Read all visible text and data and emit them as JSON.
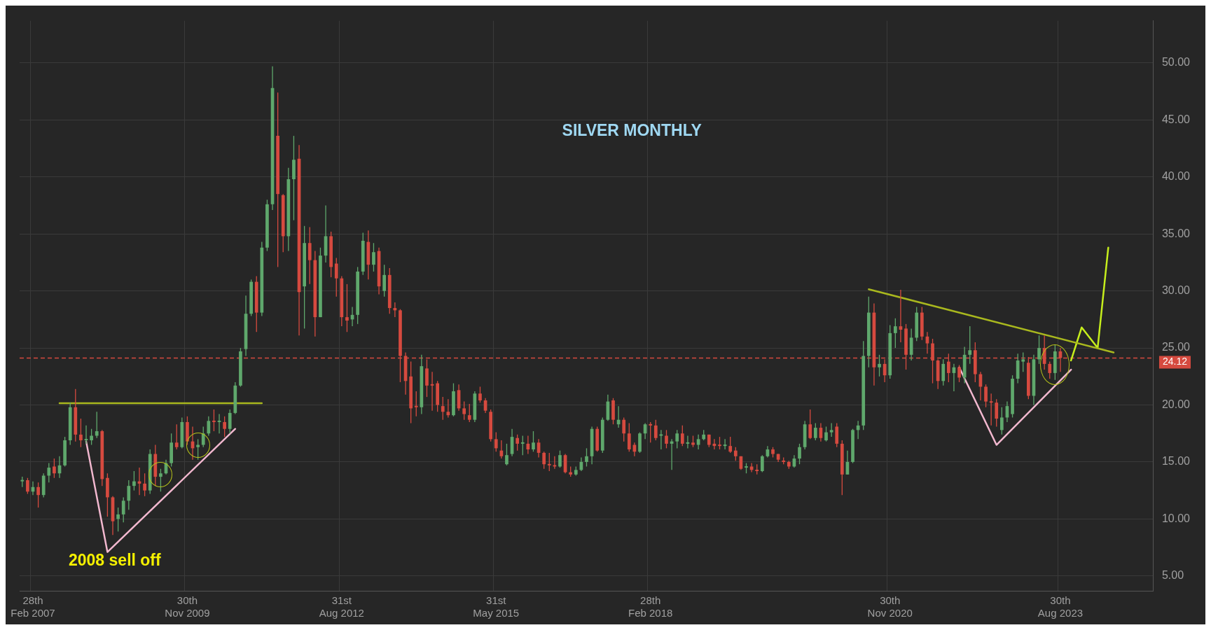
{
  "chart_data": {
    "type": "candlestick",
    "title": "SILVER MONTHLY",
    "annotations": [
      "2008 sell off"
    ],
    "categories": [
      null,
      null,
      "28th Feb 2007",
      null,
      null,
      null,
      null,
      null,
      null,
      null,
      null,
      null,
      null,
      null,
      null,
      null,
      null,
      null,
      null,
      null,
      null,
      null,
      null,
      null,
      null,
      null,
      null,
      null,
      null,
      null,
      null,
      "30th Nov 2009",
      null,
      null,
      null,
      null,
      null,
      null,
      null,
      null,
      null,
      null,
      null,
      null,
      null,
      null,
      null,
      null,
      null,
      null,
      null,
      null,
      null,
      null,
      null,
      null,
      null,
      null,
      null,
      null,
      "31st Aug 2012",
      null,
      null,
      null,
      null,
      null,
      null,
      null,
      null,
      null,
      null,
      null,
      null,
      null,
      null,
      null,
      null,
      null,
      null,
      null,
      null,
      null,
      null,
      null,
      null,
      null,
      null,
      null,
      null,
      "31st May 2015",
      null,
      null,
      null,
      null,
      null,
      null,
      null,
      null,
      null,
      null,
      null,
      null,
      null,
      null,
      null,
      null,
      null,
      null,
      null,
      null,
      null,
      null,
      null,
      null,
      null,
      null,
      null,
      null,
      "28th Feb 2018",
      null,
      null,
      null,
      null,
      null,
      null,
      null,
      null,
      null,
      null,
      null,
      null,
      null,
      null,
      null,
      null,
      null,
      null,
      null,
      null,
      null,
      null,
      null,
      null,
      null,
      null,
      null,
      null,
      null,
      null,
      null,
      null,
      null,
      null,
      null,
      null,
      null,
      null,
      null,
      null,
      null,
      null,
      null,
      null,
      "30th Nov 2020",
      null,
      null,
      null,
      null,
      null,
      null,
      null,
      null,
      null,
      null,
      null,
      null,
      null,
      null,
      null,
      null,
      null,
      null,
      null,
      null,
      null,
      null,
      null,
      null,
      null,
      null,
      null,
      null,
      null,
      null,
      null,
      "30th Aug 2023",
      null,
      null,
      null,
      null,
      null,
      null,
      null,
      null,
      null,
      null,
      null,
      null,
      null,
      null,
      null,
      null,
      null
    ],
    "colors": [
      "#5fa86c",
      "#d64a3f",
      "#5fa86c",
      "#d64a3f",
      "#5fa86c",
      "#5fa86c",
      "#d64a3f",
      "#5fa86c",
      "#5fa86c",
      "#5fa86c",
      "#d64a3f",
      "#d64a3f",
      "#5fa86c",
      "#5fa86c",
      "#5fa86c",
      "#d64a3f",
      "#d64a3f",
      "#d64a3f",
      "#5fa86c",
      "#5fa86c",
      "#5fa86c",
      "#5fa86c",
      "#d64a3f",
      "#d64a3f",
      "#5fa86c",
      "#d64a3f",
      "#5fa86c",
      "#5fa86c",
      "#5fa86c",
      "#d64a3f",
      "#5fa86c",
      "#d64a3f",
      "#d64a3f",
      "#5fa86c",
      "#5fa86c",
      "#5fa86c",
      "#d64a3f",
      "#5fa86c",
      "#d64a3f",
      "#5fa86c",
      "#5fa86c",
      "#5fa86c",
      "#5fa86c",
      "#5fa86c",
      "#d64a3f",
      "#5fa86c",
      "#5fa86c",
      "#5fa86c",
      "#d64a3f",
      "#d64a3f",
      "#5fa86c",
      "#5fa86c",
      "#d64a3f",
      "#5fa86c",
      "#d64a3f",
      "#d64a3f",
      "#5fa86c",
      "#5fa86c",
      "#d64a3f",
      "#d64a3f",
      "#d64a3f",
      "#d64a3f",
      "#5fa86c",
      "#5fa86c",
      "#5fa86c",
      "#d64a3f",
      "#5fa86c",
      "#d64a3f",
      "#5fa86c",
      "#d64a3f",
      "#d64a3f",
      "#d64a3f",
      "#d64a3f",
      "#d64a3f",
      "#d64a3f",
      "#5fa86c",
      "#d64a3f",
      "#d64a3f",
      "#d64a3f",
      "#d64a3f",
      "#d64a3f",
      "#5fa86c",
      "#d64a3f",
      "#d64a3f",
      "#d64a3f",
      "#5fa86c",
      "#d64a3f",
      "#d64a3f",
      "#d64a3f",
      "#d64a3f",
      "#d64a3f",
      "#5fa86c",
      "#5fa86c",
      "#d64a3f",
      "#5fa86c",
      "#d64a3f",
      "#5fa86c",
      "#d64a3f",
      "#d64a3f",
      "#d64a3f",
      "#d64a3f",
      "#5fa86c",
      "#d64a3f",
      "#d64a3f",
      "#5fa86c",
      "#5fa86c",
      "#5fa86c",
      "#5fa86c",
      "#d64a3f",
      "#5fa86c",
      "#5fa86c",
      "#d64a3f",
      "#5fa86c",
      "#d64a3f",
      "#d64a3f",
      "#d64a3f",
      "#5fa86c",
      "#5fa86c",
      "#d64a3f",
      "#d64a3f",
      "#5fa86c",
      "#d64a3f",
      "#5fa86c",
      "#5fa86c",
      "#d64a3f",
      "#5fa86c",
      "#d64a3f",
      "#5fa86c",
      "#5fa86c",
      "#d64a3f",
      "#d64a3f",
      "#d64a3f",
      "#5fa86c",
      "#d64a3f",
      "#d64a3f",
      "#d64a3f",
      "#5fa86c",
      "#d64a3f",
      "#d64a3f",
      "#5fa86c",
      "#5fa86c",
      "#d64a3f",
      "#d64a3f",
      "#d64a3f",
      "#d64a3f",
      "#5fa86c",
      "#5fa86c",
      "#5fa86c",
      "#d64a3f",
      "#5fa86c",
      "#d64a3f",
      "#5fa86c",
      "#5fa86c",
      "#d64a3f",
      "#d64a3f",
      "#5fa86c",
      "#5fa86c",
      "#5fa86c",
      "#5fa86c",
      "#5fa86c",
      "#d64a3f",
      "#5fa86c",
      "#d64a3f",
      "#5fa86c",
      "#5fa86c",
      "#d64a3f",
      "#d64a3f",
      "#5fa86c",
      "#5fa86c",
      "#d64a3f",
      "#d64a3f",
      "#d64a3f",
      "#d64a3f",
      "#5fa86c",
      "#d64a3f",
      "#5fa86c",
      "#d64a3f",
      "#5fa86c",
      "#5fa86c",
      "#d64a3f",
      "#d64a3f",
      "#d64a3f",
      "#d64a3f",
      "#d64a3f",
      "#5fa86c",
      "#5fa86c",
      "#5fa86c",
      "#5fa86c",
      "#5fa86c",
      "#d64a3f",
      "#5fa86c",
      "#5fa86c",
      "#d64a3f",
      "#d64a3f",
      "#5fa86c",
      "#d64a3f",
      null,
      null,
      null,
      null,
      null,
      null,
      null,
      null,
      null,
      null,
      null,
      null,
      null,
      null,
      null,
      null,
      null
    ],
    "ohlc": [
      [
        13.3,
        13.7,
        12.8,
        13.4
      ],
      [
        13.4,
        13.6,
        12.2,
        12.4
      ],
      [
        12.4,
        13.3,
        12.1,
        12.8
      ],
      [
        12.8,
        13.2,
        11.0,
        12.1
      ],
      [
        12.1,
        14.0,
        11.9,
        13.8
      ],
      [
        13.8,
        14.9,
        13.2,
        14.5
      ],
      [
        14.6,
        15.3,
        13.6,
        14.0
      ],
      [
        14.0,
        15.5,
        13.6,
        14.7
      ],
      [
        14.7,
        17.2,
        14.6,
        16.9
      ],
      [
        16.9,
        20.2,
        16.5,
        19.8
      ],
      [
        19.8,
        21.4,
        16.8,
        17.4
      ],
      [
        17.4,
        18.8,
        16.3,
        16.9
      ],
      [
        16.9,
        18.2,
        16.6,
        17.0
      ],
      [
        16.9,
        17.9,
        16.5,
        17.3
      ],
      [
        17.3,
        19.4,
        17.1,
        17.7
      ],
      [
        17.7,
        17.8,
        12.9,
        13.5
      ],
      [
        13.6,
        14.0,
        10.2,
        11.9
      ],
      [
        11.9,
        12.0,
        8.6,
        9.8
      ],
      [
        10.0,
        11.0,
        8.9,
        10.4
      ],
      [
        10.4,
        11.9,
        9.7,
        11.6
      ],
      [
        11.6,
        13.4,
        10.8,
        12.9
      ],
      [
        12.9,
        14.2,
        12.5,
        13.3
      ],
      [
        13.3,
        14.5,
        12.1,
        13.1
      ],
      [
        13.1,
        14.0,
        12.0,
        12.5
      ],
      [
        12.5,
        16.1,
        12.2,
        15.7
      ],
      [
        15.7,
        16.5,
        12.9,
        13.7
      ],
      [
        13.7,
        14.4,
        12.4,
        14.0
      ],
      [
        14.0,
        15.2,
        13.9,
        14.9
      ],
      [
        14.9,
        17.5,
        14.6,
        16.7
      ],
      [
        16.7,
        18.3,
        16.1,
        16.3
      ],
      [
        16.3,
        18.9,
        16.2,
        18.5
      ],
      [
        18.5,
        19.0,
        16.5,
        16.8
      ],
      [
        16.8,
        18.1,
        15.2,
        16.2
      ],
      [
        16.3,
        17.0,
        15.2,
        16.5
      ],
      [
        16.5,
        18.1,
        16.3,
        17.5
      ],
      [
        17.5,
        19.0,
        17.3,
        18.6
      ],
      [
        18.6,
        19.6,
        17.7,
        18.5
      ],
      [
        18.5,
        19.2,
        17.5,
        18.6
      ],
      [
        18.5,
        19.0,
        17.2,
        17.9
      ],
      [
        17.9,
        19.6,
        17.5,
        19.3
      ],
      [
        19.3,
        22.0,
        19.2,
        21.7
      ],
      [
        21.7,
        25.0,
        21.6,
        24.7
      ],
      [
        24.9,
        29.6,
        24.3,
        28.0
      ],
      [
        28.0,
        31.0,
        27.8,
        30.8
      ],
      [
        30.8,
        31.3,
        26.4,
        28.1
      ],
      [
        28.1,
        34.3,
        27.8,
        33.8
      ],
      [
        33.8,
        38.0,
        33.5,
        37.6
      ],
      [
        37.6,
        49.7,
        37.1,
        47.8
      ],
      [
        43.6,
        47.4,
        32.1,
        38.5
      ],
      [
        38.4,
        38.5,
        33.4,
        34.8
      ],
      [
        34.8,
        40.8,
        33.5,
        39.8
      ],
      [
        39.8,
        43.6,
        36.2,
        41.5
      ],
      [
        41.6,
        42.8,
        26.1,
        29.9
      ],
      [
        30.4,
        35.7,
        26.7,
        34.2
      ],
      [
        34.2,
        35.6,
        30.6,
        32.7
      ],
      [
        32.7,
        33.5,
        26.0,
        27.7
      ],
      [
        27.7,
        33.8,
        27.7,
        33.1
      ],
      [
        33.1,
        37.5,
        32.5,
        34.8
      ],
      [
        34.8,
        35.2,
        31.2,
        32.1
      ],
      [
        32.4,
        32.9,
        29.5,
        31.1
      ],
      [
        31.1,
        31.3,
        26.9,
        27.7
      ],
      [
        27.7,
        30.6,
        26.4,
        27.4
      ],
      [
        27.5,
        28.6,
        26.9,
        27.9
      ],
      [
        27.9,
        32.1,
        27.1,
        31.7
      ],
      [
        31.7,
        35.1,
        31.4,
        34.4
      ],
      [
        34.3,
        35.3,
        31.0,
        32.3
      ],
      [
        32.3,
        34.2,
        31.7,
        33.4
      ],
      [
        33.5,
        33.8,
        29.7,
        30.4
      ],
      [
        30.0,
        32.3,
        29.5,
        31.4
      ],
      [
        31.4,
        32.0,
        28.0,
        28.5
      ],
      [
        28.5,
        29.0,
        27.7,
        28.3
      ],
      [
        28.3,
        28.4,
        22.0,
        24.3
      ],
      [
        24.3,
        24.6,
        20.9,
        22.1
      ],
      [
        22.5,
        23.8,
        18.4,
        19.7
      ],
      [
        19.9,
        21.2,
        19.0,
        19.8
      ],
      [
        19.8,
        24.4,
        19.2,
        23.4
      ],
      [
        23.2,
        24.0,
        20.7,
        21.7
      ],
      [
        21.8,
        22.9,
        19.5,
        21.7
      ],
      [
        21.9,
        22.1,
        19.4,
        20.0
      ],
      [
        19.9,
        20.7,
        18.7,
        19.4
      ],
      [
        19.4,
        20.5,
        18.9,
        19.1
      ],
      [
        19.1,
        21.9,
        19.0,
        21.2
      ],
      [
        21.3,
        21.8,
        19.5,
        19.7
      ],
      [
        19.7,
        20.3,
        18.7,
        19.2
      ],
      [
        19.1,
        20.1,
        18.5,
        18.7
      ],
      [
        18.7,
        21.2,
        18.5,
        21.0
      ],
      [
        21.0,
        21.6,
        20.2,
        20.4
      ],
      [
        20.4,
        20.6,
        19.3,
        19.5
      ],
      [
        19.4,
        19.6,
        16.8,
        17.0
      ],
      [
        17.0,
        17.6,
        15.9,
        16.2
      ],
      [
        16.0,
        16.9,
        15.3,
        15.5
      ],
      [
        14.8,
        16.6,
        14.7,
        15.6
      ],
      [
        15.7,
        17.9,
        15.5,
        17.2
      ],
      [
        17.1,
        17.4,
        16.0,
        16.6
      ],
      [
        16.6,
        17.3,
        15.6,
        16.6
      ],
      [
        16.6,
        17.3,
        15.7,
        16.1
      ],
      [
        16.1,
        17.7,
        15.9,
        16.7
      ],
      [
        16.7,
        17.0,
        15.4,
        15.8
      ],
      [
        15.8,
        15.9,
        14.4,
        14.8
      ],
      [
        14.8,
        15.8,
        14.2,
        14.7
      ],
      [
        14.7,
        15.5,
        14.4,
        14.6
      ],
      [
        14.6,
        16.0,
        14.5,
        15.6
      ],
      [
        15.6,
        15.7,
        14.0,
        14.1
      ],
      [
        14.1,
        14.6,
        13.7,
        13.9
      ],
      [
        13.9,
        14.6,
        13.8,
        14.3
      ],
      [
        14.3,
        15.4,
        14.2,
        15.0
      ],
      [
        15.0,
        16.2,
        14.6,
        15.5
      ],
      [
        15.5,
        18.1,
        14.8,
        17.9
      ],
      [
        17.9,
        18.1,
        15.9,
        16.0
      ],
      [
        16.0,
        18.9,
        15.8,
        18.7
      ],
      [
        18.7,
        20.9,
        18.6,
        20.3
      ],
      [
        20.4,
        20.6,
        18.3,
        18.7
      ],
      [
        18.3,
        19.9,
        18.0,
        18.7
      ],
      [
        18.7,
        18.9,
        16.8,
        17.5
      ],
      [
        17.5,
        18.4,
        15.9,
        16.1
      ],
      [
        16.5,
        16.7,
        15.5,
        15.9
      ],
      [
        15.9,
        17.6,
        15.8,
        17.5
      ],
      [
        17.5,
        18.4,
        17.0,
        18.3
      ],
      [
        18.3,
        18.5,
        16.7,
        18.2
      ],
      [
        18.2,
        18.7,
        16.9,
        17.1
      ],
      [
        17.3,
        17.8,
        16.1,
        17.4
      ],
      [
        17.3,
        17.8,
        16.2,
        16.6
      ],
      [
        16.6,
        17.0,
        14.3,
        16.8
      ],
      [
        16.8,
        17.8,
        16.2,
        17.5
      ],
      [
        17.5,
        18.2,
        16.4,
        16.6
      ],
      [
        16.6,
        17.3,
        16.2,
        16.7
      ],
      [
        16.7,
        17.3,
        16.3,
        16.5
      ],
      [
        16.5,
        17.4,
        16.1,
        17.0
      ],
      [
        17.0,
        17.8,
        16.9,
        17.4
      ],
      [
        17.4,
        17.4,
        16.3,
        16.5
      ],
      [
        16.6,
        17.0,
        16.1,
        16.4
      ],
      [
        16.5,
        17.2,
        16.1,
        16.4
      ],
      [
        16.4,
        17.0,
        16.1,
        16.5
      ],
      [
        16.4,
        17.2,
        15.8,
        15.9
      ],
      [
        16.0,
        16.3,
        15.1,
        15.5
      ],
      [
        15.5,
        15.5,
        14.3,
        14.4
      ],
      [
        14.5,
        14.9,
        14.0,
        14.6
      ],
      [
        14.6,
        14.9,
        14.1,
        14.3
      ],
      [
        14.3,
        14.8,
        13.9,
        14.2
      ],
      [
        14.2,
        15.6,
        14.1,
        15.5
      ],
      [
        15.5,
        16.4,
        15.4,
        16.1
      ],
      [
        16.1,
        16.3,
        15.4,
        15.7
      ],
      [
        15.7,
        15.7,
        15.0,
        15.2
      ],
      [
        15.1,
        15.4,
        14.8,
        15.0
      ],
      [
        15.0,
        15.1,
        14.4,
        14.6
      ],
      [
        14.6,
        15.6,
        14.5,
        15.3
      ],
      [
        15.3,
        16.6,
        14.8,
        16.3
      ],
      [
        16.3,
        18.6,
        16.1,
        18.3
      ],
      [
        18.3,
        19.6,
        17.0,
        17.1
      ],
      [
        17.1,
        18.4,
        16.9,
        18.0
      ],
      [
        18.0,
        18.4,
        16.8,
        17.1
      ],
      [
        16.9,
        18.1,
        16.8,
        17.6
      ],
      [
        17.6,
        18.4,
        17.2,
        17.8
      ],
      [
        18.1,
        18.4,
        16.3,
        16.6
      ],
      [
        16.6,
        16.9,
        12.1,
        13.9
      ],
      [
        13.9,
        16.0,
        13.9,
        15.0
      ],
      [
        15.0,
        17.9,
        14.9,
        17.8
      ],
      [
        17.8,
        18.6,
        17.0,
        18.2
      ],
      [
        18.2,
        25.6,
        17.8,
        24.3
      ],
      [
        24.3,
        29.5,
        23.3,
        28.1
      ],
      [
        28.1,
        28.9,
        21.7,
        23.3
      ],
      [
        23.3,
        24.4,
        22.5,
        23.6
      ],
      [
        23.6,
        24.0,
        22.0,
        22.6
      ],
      [
        22.6,
        27.0,
        22.3,
        26.3
      ],
      [
        26.3,
        27.6,
        25.0,
        26.9
      ],
      [
        26.9,
        30.1,
        25.5,
        26.6
      ],
      [
        26.7,
        27.1,
        23.1,
        24.4
      ],
      [
        24.4,
        26.7,
        23.9,
        25.9
      ],
      [
        25.9,
        28.6,
        25.6,
        28.1
      ],
      [
        28.1,
        28.6,
        25.7,
        26.0
      ],
      [
        26.0,
        26.4,
        24.5,
        25.4
      ],
      [
        25.4,
        25.8,
        21.9,
        23.9
      ],
      [
        23.9,
        24.0,
        21.4,
        22.1
      ],
      [
        22.1,
        24.0,
        21.7,
        23.6
      ],
      [
        23.8,
        24.5,
        22.0,
        22.8
      ],
      [
        22.8,
        23.6,
        21.2,
        23.3
      ],
      [
        23.3,
        23.5,
        22.0,
        22.4
      ],
      [
        22.4,
        25.1,
        21.9,
        24.4
      ],
      [
        24.4,
        26.9,
        23.6,
        24.8
      ],
      [
        24.8,
        25.5,
        22.0,
        22.7
      ],
      [
        22.7,
        22.9,
        20.4,
        21.6
      ],
      [
        21.6,
        21.8,
        19.8,
        20.3
      ],
      [
        20.3,
        21.0,
        18.2,
        20.2
      ],
      [
        20.2,
        20.5,
        18.1,
        18.8
      ],
      [
        17.8,
        19.8,
        17.4,
        18.9
      ],
      [
        18.9,
        20.3,
        18.5,
        19.9
      ],
      [
        19.2,
        22.6,
        18.9,
        22.3
      ],
      [
        22.3,
        24.5,
        21.9,
        23.9
      ],
      [
        23.8,
        24.6,
        22.9,
        24.0
      ],
      [
        23.7,
        24.2,
        20.5,
        20.8
      ],
      [
        20.8,
        24.4,
        20.0,
        24.0
      ],
      [
        24.0,
        26.1,
        23.6,
        25.0
      ],
      [
        25.0,
        26.1,
        23.1,
        23.6
      ],
      [
        23.6,
        23.8,
        22.3,
        22.8
      ],
      [
        22.8,
        25.3,
        22.2,
        24.7
      ],
      [
        24.7,
        25.0,
        22.9,
        24.12
      ],
      null,
      null,
      null,
      null,
      null,
      null,
      null,
      null,
      null,
      null,
      null,
      null,
      null,
      null,
      null,
      null,
      null
    ],
    "series": [
      {
        "type": "line",
        "color": "#a9b81e",
        "values": [
          null,
          null,
          null,
          null,
          null,
          null,
          null,
          20.15,
          null,
          null,
          null,
          null,
          null,
          null,
          null,
          null,
          null,
          null,
          null,
          null,
          null,
          null,
          null,
          null,
          null,
          null,
          null,
          null,
          null,
          null,
          null,
          null,
          null,
          null,
          null,
          null,
          null,
          null,
          null,
          null,
          null,
          null,
          null,
          null,
          null,
          20.15,
          null,
          null,
          null,
          null,
          null,
          null,
          null,
          null,
          null,
          null,
          null,
          null,
          null,
          null,
          null,
          null,
          null,
          null,
          null,
          null,
          null,
          null,
          null,
          null,
          null,
          null,
          null,
          null,
          null,
          null,
          null,
          null,
          null,
          null,
          null,
          null,
          null,
          null,
          null,
          null,
          null,
          null,
          null,
          null,
          null,
          null,
          null,
          null,
          null,
          null,
          null,
          null,
          null,
          null,
          null,
          null,
          null,
          null,
          null,
          null,
          null,
          null,
          null,
          null,
          null,
          null,
          null,
          null,
          null,
          null,
          null,
          null,
          null,
          null,
          null,
          null,
          null,
          null,
          null,
          null,
          null,
          null,
          null,
          null,
          null,
          null,
          null,
          null,
          null,
          null,
          null,
          null,
          null,
          null,
          null,
          null,
          null,
          null,
          null,
          null,
          null,
          null,
          null,
          null,
          null,
          null,
          null,
          null,
          null,
          null,
          null,
          null,
          null,
          null,
          null,
          null,
          null,
          null,
          null,
          null,
          null,
          null,
          null,
          null,
          null,
          null,
          null,
          null,
          null,
          null,
          null,
          null,
          null,
          null,
          null,
          null,
          null,
          null,
          null,
          null,
          null,
          null,
          null,
          null,
          null,
          null,
          null,
          null,
          null,
          null,
          null,
          null,
          null,
          null,
          null,
          null,
          null,
          null,
          null,
          null,
          null,
          null,
          null,
          null,
          null,
          null,
          null
        ]
      },
      {
        "type": "line",
        "color": "#f2b8cf",
        "values": [
          null,
          null,
          null,
          null,
          null,
          null,
          null,
          null,
          null,
          null,
          null,
          null,
          16.8,
          null,
          null,
          null,
          7.1,
          null,
          null,
          null,
          null,
          null,
          null,
          null,
          null,
          null,
          null,
          null,
          null,
          null,
          null,
          null,
          null,
          null,
          null,
          null,
          null,
          null,
          null,
          null,
          17.9,
          null,
          null,
          null,
          null,
          null,
          null,
          null,
          null,
          null,
          null,
          null,
          null,
          null,
          null,
          null,
          null,
          null,
          null,
          null,
          null,
          null,
          null,
          null,
          null,
          null,
          null,
          null,
          null,
          null,
          null,
          null,
          null,
          null,
          null,
          null,
          null,
          null,
          null,
          null,
          null,
          null,
          null,
          null,
          null,
          null,
          null,
          null,
          null,
          null,
          null,
          null,
          null,
          null,
          null,
          null,
          null,
          null,
          null,
          null,
          null,
          null,
          null,
          null,
          null,
          null,
          null,
          null,
          null,
          null,
          null,
          null,
          null,
          null,
          null,
          null,
          null,
          null,
          null,
          null,
          null,
          null,
          null,
          null,
          null,
          null,
          null,
          null,
          null,
          null,
          null,
          null,
          null,
          null,
          null,
          null,
          null,
          null,
          null,
          null,
          null,
          null,
          null,
          null,
          null,
          null,
          null,
          null,
          null,
          null,
          null,
          null,
          null,
          null,
          null,
          null,
          null,
          null,
          null,
          null,
          null,
          null,
          null,
          null,
          null,
          null,
          null,
          null,
          null,
          null,
          null,
          null,
          null,
          null,
          null,
          null,
          null,
          null,
          null,
          null,
          null,
          null,
          null,
          null,
          null,
          null,
          null,
          null,
          null,
          null,
          null,
          null,
          null,
          null,
          null,
          null,
          null,
          null,
          null,
          null,
          null,
          null,
          null,
          null,
          null,
          null,
          null,
          null,
          null,
          null,
          null,
          null,
          null
        ]
      },
      {
        "type": "line",
        "color": "#f2b8cf",
        "values": [
          null,
          null,
          null,
          null,
          null,
          null,
          null,
          null,
          null,
          null,
          null,
          null,
          null,
          null,
          null,
          null,
          null,
          null,
          null,
          null,
          null,
          null,
          null,
          null,
          null,
          null,
          null,
          null,
          null,
          null,
          null,
          null,
          null,
          null,
          null,
          null,
          null,
          null,
          null,
          null,
          null,
          null,
          null,
          null,
          null,
          null,
          null,
          null,
          null,
          null,
          null,
          null,
          null,
          null,
          null,
          null,
          null,
          null,
          null,
          null,
          null,
          null,
          null,
          null,
          null,
          null,
          null,
          null,
          null,
          null,
          null,
          null,
          null,
          null,
          null,
          null,
          null,
          null,
          null,
          null,
          null,
          null,
          null,
          null,
          null,
          null,
          null,
          null,
          null,
          null,
          null,
          null,
          null,
          null,
          null,
          null,
          null,
          null,
          null,
          null,
          null,
          null,
          null,
          null,
          null,
          null,
          null,
          null,
          null,
          null,
          null,
          null,
          null,
          null,
          null,
          null,
          null,
          null,
          null,
          null,
          null,
          null,
          null,
          null,
          null,
          null,
          null,
          null,
          null,
          null,
          null,
          null,
          null,
          null,
          null,
          null,
          null,
          null,
          null,
          null,
          null,
          null,
          null,
          null,
          null,
          null,
          null,
          null,
          null,
          null,
          null,
          null,
          null,
          null,
          null,
          null,
          null,
          null,
          null,
          null,
          null,
          null,
          null,
          null,
          null,
          null,
          null,
          null,
          null,
          null,
          null,
          null,
          null,
          null,
          null,
          null,
          23.3,
          null,
          null,
          null,
          null,
          null,
          null,
          16.5,
          null,
          null,
          null,
          null,
          null,
          null,
          null,
          null,
          null,
          null,
          null,
          null,
          null,
          23.1,
          null,
          null,
          null,
          null,
          null,
          null,
          null,
          null,
          null,
          null,
          null,
          null,
          null,
          null,
          null
        ]
      },
      {
        "type": "line",
        "color": "#a9b81e",
        "values": [
          null,
          null,
          null,
          null,
          null,
          null,
          null,
          null,
          null,
          null,
          null,
          null,
          null,
          null,
          null,
          null,
          null,
          null,
          null,
          null,
          null,
          null,
          null,
          null,
          null,
          null,
          null,
          null,
          null,
          null,
          null,
          null,
          null,
          null,
          null,
          null,
          null,
          null,
          null,
          null,
          null,
          null,
          null,
          null,
          null,
          null,
          null,
          null,
          null,
          null,
          null,
          null,
          null,
          null,
          null,
          null,
          null,
          null,
          null,
          null,
          null,
          null,
          null,
          null,
          null,
          null,
          null,
          null,
          null,
          null,
          null,
          null,
          null,
          null,
          null,
          null,
          null,
          null,
          null,
          null,
          null,
          null,
          null,
          null,
          null,
          null,
          null,
          null,
          null,
          null,
          null,
          null,
          null,
          null,
          null,
          null,
          null,
          null,
          null,
          null,
          null,
          null,
          null,
          null,
          null,
          null,
          null,
          null,
          null,
          null,
          null,
          null,
          null,
          null,
          null,
          null,
          null,
          null,
          null,
          null,
          null,
          null,
          null,
          null,
          null,
          null,
          null,
          null,
          null,
          null,
          null,
          null,
          null,
          null,
          null,
          null,
          null,
          null,
          null,
          null,
          null,
          null,
          null,
          null,
          null,
          null,
          null,
          null,
          null,
          null,
          null,
          null,
          null,
          null,
          null,
          null,
          null,
          null,
          null,
          30.15,
          null,
          null,
          null,
          null,
          null,
          null,
          null,
          null,
          null,
          null,
          null,
          null,
          null,
          null,
          null,
          null,
          null,
          null,
          null,
          null,
          null,
          null,
          null,
          null,
          null,
          null,
          null,
          null,
          null,
          null,
          null,
          null,
          null,
          null,
          null,
          null,
          null,
          null,
          null,
          null,
          null,
          null,
          null,
          null,
          null,
          24.6,
          null,
          null,
          null,
          null,
          null,
          null,
          null
        ]
      },
      {
        "type": "line",
        "color": "#c6ee1c",
        "values": [
          null,
          null,
          null,
          null,
          null,
          null,
          null,
          null,
          null,
          null,
          null,
          null,
          null,
          null,
          null,
          null,
          null,
          null,
          null,
          null,
          null,
          null,
          null,
          null,
          null,
          null,
          null,
          null,
          null,
          null,
          null,
          null,
          null,
          null,
          null,
          null,
          null,
          null,
          null,
          null,
          null,
          null,
          null,
          null,
          null,
          null,
          null,
          null,
          null,
          null,
          null,
          null,
          null,
          null,
          null,
          null,
          null,
          null,
          null,
          null,
          null,
          null,
          null,
          null,
          null,
          null,
          null,
          null,
          null,
          null,
          null,
          null,
          null,
          null,
          null,
          null,
          null,
          null,
          null,
          null,
          null,
          null,
          null,
          null,
          null,
          null,
          null,
          null,
          null,
          null,
          null,
          null,
          null,
          null,
          null,
          null,
          null,
          null,
          null,
          null,
          null,
          null,
          null,
          null,
          null,
          null,
          null,
          null,
          null,
          null,
          null,
          null,
          null,
          null,
          null,
          null,
          null,
          null,
          null,
          null,
          null,
          null,
          null,
          null,
          null,
          null,
          null,
          null,
          null,
          null,
          null,
          null,
          null,
          null,
          null,
          null,
          null,
          null,
          null,
          null,
          null,
          null,
          null,
          null,
          null,
          null,
          null,
          null,
          null,
          null,
          null,
          null,
          null,
          null,
          null,
          null,
          null,
          null,
          null,
          null,
          null,
          null,
          null,
          null,
          null,
          null,
          null,
          null,
          null,
          null,
          null,
          null,
          null,
          null,
          null,
          null,
          null,
          null,
          null,
          null,
          null,
          null,
          null,
          null,
          null,
          null,
          null,
          null,
          null,
          null,
          null,
          null,
          null,
          null,
          null,
          null,
          null,
          23.9,
          null,
          26.8,
          null,
          null,
          25.0,
          null,
          33.8,
          null,
          null,
          null,
          null,
          null,
          null,
          null,
          null
        ]
      }
    ],
    "ref_lines": [
      {
        "axis": "y",
        "value": 24.12,
        "label": "24.12",
        "color": "#d64a3f"
      }
    ],
    "ylim": [
      3.7,
      53.7
    ],
    "yticks": [
      {
        "value": 5,
        "label": "5.00"
      },
      {
        "value": 10,
        "label": "10.00"
      },
      {
        "value": 15,
        "label": "15.00"
      },
      {
        "value": 20,
        "label": "20.00"
      },
      {
        "value": 25,
        "label": "25.00"
      },
      {
        "value": 30,
        "label": "30.00"
      },
      {
        "value": 35,
        "label": "35.00"
      },
      {
        "value": 40,
        "label": "40.00"
      },
      {
        "value": 45,
        "label": "45.00"
      },
      {
        "value": 50,
        "label": "50.00"
      }
    ],
    "grid": true,
    "marker": "none"
  }
}
